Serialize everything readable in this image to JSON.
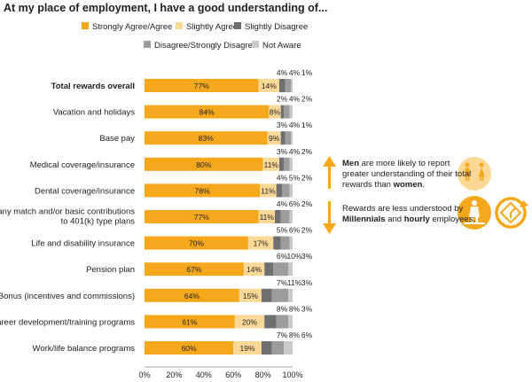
{
  "title": "At my place of employment, I have a good understanding of...",
  "colors": {
    "strongly_agree": "#F5A81C",
    "slightly_agree": "#FCD896",
    "slightly_disagree": "#6F6F6F",
    "disagree": "#9C9C9C",
    "not_aware": "#C9C9C9",
    "accent": "#F5A81C"
  },
  "chart_data": {
    "type": "bar",
    "orientation": "horizontal",
    "stacked": true,
    "categories": [
      "Total rewards overall",
      "Vacation and holidays",
      "Base pay",
      "Medical coverage/insurance",
      "Dental coverage/insurance",
      "Company match and/or basic contributions to 401(k) type plans",
      "Life and disability insurance",
      "Pension plan",
      "Bonus (incentives and commissions)",
      "Career development/training programs",
      "Work/life balance programs"
    ],
    "category_lines": [
      [
        "Total rewards overall"
      ],
      [
        "Vacation and holidays"
      ],
      [
        "Base pay"
      ],
      [
        "Medical coverage/insurance"
      ],
      [
        "Dental coverage/insurance"
      ],
      [
        "Company match and/or basic contributions",
        "to 401(k) type plans"
      ],
      [
        "Life and disability insurance"
      ],
      [
        "Pension plan"
      ],
      [
        "Bonus (incentives and commissions)"
      ],
      [
        "Career development/training programs"
      ],
      [
        "Work/life balance programs"
      ]
    ],
    "bold_category": "Total rewards overall",
    "series": [
      {
        "name": "Strongly Agree/Agree",
        "color": "#F5A81C",
        "values": [
          77,
          84,
          83,
          80,
          78,
          77,
          70,
          67,
          64,
          61,
          60
        ]
      },
      {
        "name": "Slightly Agree",
        "color": "#FCD896",
        "values": [
          14,
          8,
          9,
          11,
          11,
          11,
          17,
          14,
          15,
          20,
          19
        ]
      },
      {
        "name": "Slightly Disagree",
        "color": "#6F6F6F",
        "values": [
          4,
          2,
          3,
          3,
          4,
          4,
          5,
          6,
          7,
          8,
          7
        ]
      },
      {
        "name": "Disagree/Strongly Disagree",
        "color": "#9C9C9C",
        "values": [
          4,
          4,
          4,
          4,
          5,
          6,
          6,
          10,
          11,
          8,
          8
        ]
      },
      {
        "name": "Not Aware",
        "color": "#C9C9C9",
        "values": [
          1,
          2,
          1,
          2,
          2,
          2,
          2,
          3,
          3,
          3,
          6
        ]
      }
    ],
    "data_labels": [
      {
        "inside": [
          "77%",
          "14%"
        ],
        "above": [
          "4%",
          "4%",
          "1%"
        ]
      },
      {
        "inside": [
          "84%",
          "8%"
        ],
        "above": [
          "2%",
          "4%",
          "2%"
        ]
      },
      {
        "inside": [
          "83%",
          "9%"
        ],
        "above": [
          "3%",
          "4%",
          "1%"
        ]
      },
      {
        "inside": [
          "80%",
          "11%"
        ],
        "above": [
          "3%",
          "4%",
          "2%"
        ]
      },
      {
        "inside": [
          "78%",
          "11%"
        ],
        "above": [
          "4%",
          "5%",
          "2%"
        ]
      },
      {
        "inside": [
          "77%",
          "11%"
        ],
        "above": [
          "4%",
          "6%",
          "2%"
        ]
      },
      {
        "inside": [
          "70%",
          "17%"
        ],
        "above": [
          "5%",
          "6%",
          "2%"
        ]
      },
      {
        "inside": [
          "67%",
          "14%"
        ],
        "above": [
          "6%",
          "10%",
          "3%"
        ]
      },
      {
        "inside": [
          "64%",
          "15%"
        ],
        "above": [
          "7%",
          "11%",
          "3%"
        ]
      },
      {
        "inside": [
          "61%",
          "20%"
        ],
        "above": [
          "8%",
          "8%",
          "3%"
        ]
      },
      {
        "inside": [
          "60%",
          "19%"
        ],
        "above": [
          "7%",
          "8%",
          "6%"
        ]
      }
    ],
    "x_ticks": [
      "0%",
      "20%",
      "40%",
      "60%",
      "80%",
      "100%"
    ],
    "xlim": [
      0,
      100
    ],
    "legend_position": "top",
    "grid": false
  },
  "annotations": {
    "note1": {
      "pre": "",
      "b1": "Men",
      "mid": " are more likely to report greater understanding of their total rewards than ",
      "b2": "women",
      "post": "."
    },
    "note2": {
      "pre": "Rewards are less understood by ",
      "b1": "Millennials",
      "mid": " and ",
      "b2": "hourly",
      "post": " employees."
    }
  },
  "icons": [
    "arrow-up-icon",
    "arrow-down-icon",
    "man-woman-icon",
    "person-hourly-icon",
    "clock-rotate-icon"
  ]
}
